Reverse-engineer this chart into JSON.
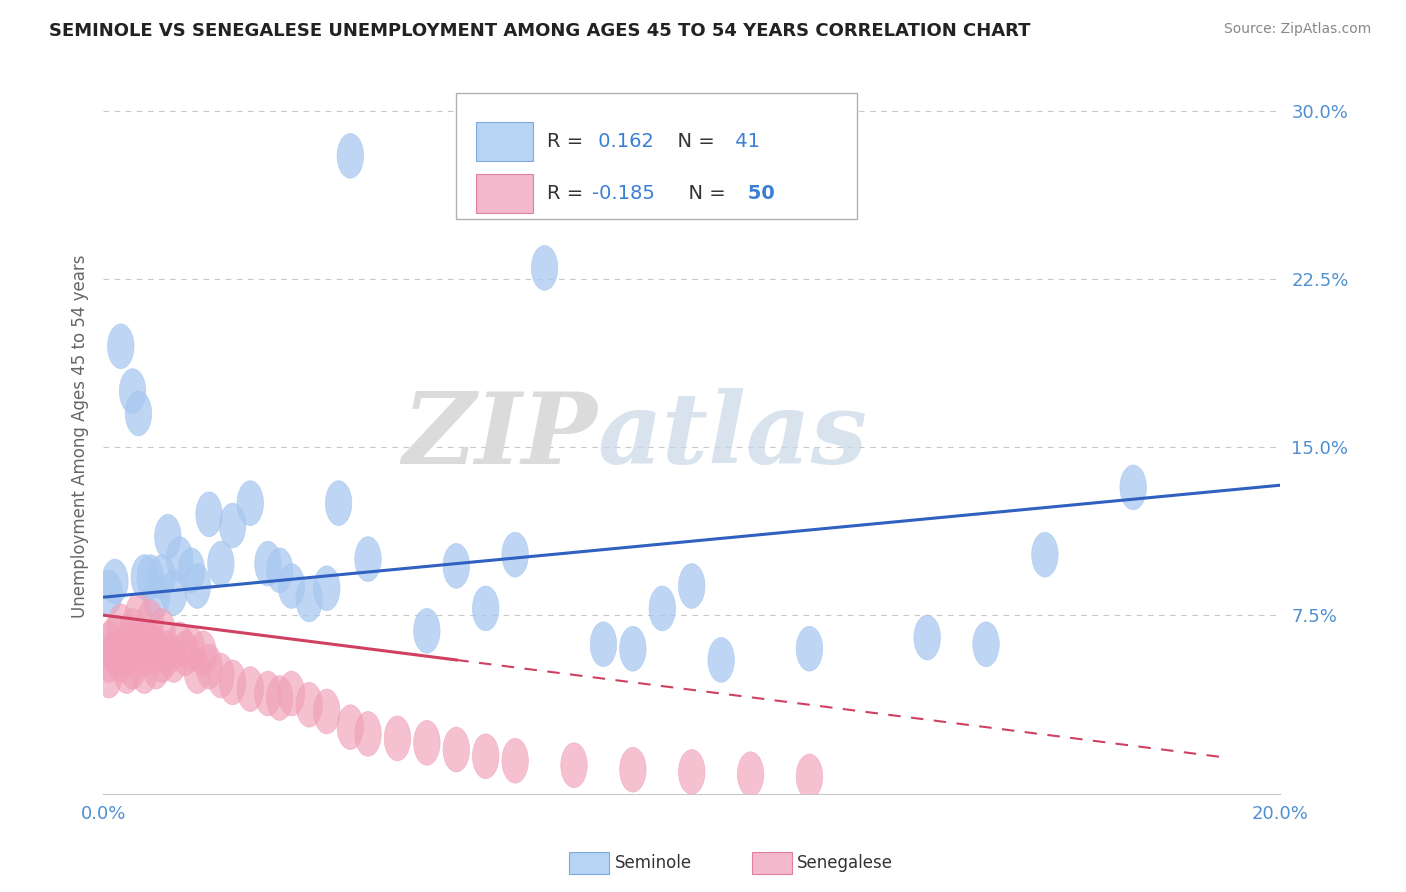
{
  "title": "SEMINOLE VS SENEGALESE UNEMPLOYMENT AMONG AGES 45 TO 54 YEARS CORRELATION CHART",
  "source": "Source: ZipAtlas.com",
  "xlim": [
    0.0,
    0.2
  ],
  "ylim": [
    -0.005,
    0.315
  ],
  "ylabel": "Unemployment Among Ages 45 to 54 years",
  "watermark_zip": "ZIP",
  "watermark_atlas": "atlas",
  "seminole_color": "#a8c8f0",
  "senegalese_color": "#f0a0b8",
  "seminole_line_color": "#3060c0",
  "senegalese_line_color": "#d04060",
  "background_color": "#ffffff",
  "grid_color": "#c8c8c8",
  "legend_box_blue": "#b8d4f4",
  "legend_box_pink": "#f4b8cc",
  "ytick_color": "#5090d0",
  "xtick_color": "#5090d0",
  "seminole_x": [
    0.001,
    0.002,
    0.003,
    0.005,
    0.006,
    0.007,
    0.008,
    0.009,
    0.01,
    0.011,
    0.012,
    0.013,
    0.015,
    0.016,
    0.018,
    0.02,
    0.022,
    0.025,
    0.028,
    0.03,
    0.032,
    0.035,
    0.038,
    0.04,
    0.042,
    0.045,
    0.055,
    0.06,
    0.065,
    0.07,
    0.075,
    0.085,
    0.09,
    0.095,
    0.1,
    0.105,
    0.12,
    0.14,
    0.15,
    0.16,
    0.175
  ],
  "seminole_y": [
    0.085,
    0.09,
    0.195,
    0.175,
    0.165,
    0.092,
    0.092,
    0.083,
    0.092,
    0.11,
    0.085,
    0.1,
    0.095,
    0.088,
    0.12,
    0.098,
    0.115,
    0.125,
    0.098,
    0.095,
    0.088,
    0.082,
    0.087,
    0.125,
    0.28,
    0.1,
    0.068,
    0.097,
    0.078,
    0.102,
    0.23,
    0.062,
    0.06,
    0.078,
    0.088,
    0.055,
    0.06,
    0.065,
    0.062,
    0.102,
    0.132
  ],
  "senegalese_x": [
    0.001,
    0.001,
    0.001,
    0.002,
    0.002,
    0.003,
    0.003,
    0.004,
    0.004,
    0.005,
    0.005,
    0.005,
    0.006,
    0.006,
    0.007,
    0.007,
    0.008,
    0.008,
    0.009,
    0.009,
    0.01,
    0.01,
    0.011,
    0.012,
    0.013,
    0.014,
    0.015,
    0.016,
    0.017,
    0.018,
    0.02,
    0.022,
    0.025,
    0.028,
    0.03,
    0.032,
    0.035,
    0.038,
    0.042,
    0.045,
    0.05,
    0.055,
    0.06,
    0.065,
    0.07,
    0.08,
    0.09,
    0.1,
    0.11,
    0.12
  ],
  "senegalese_y": [
    0.062,
    0.055,
    0.048,
    0.065,
    0.058,
    0.07,
    0.055,
    0.058,
    0.05,
    0.068,
    0.06,
    0.052,
    0.075,
    0.062,
    0.058,
    0.05,
    0.072,
    0.062,
    0.06,
    0.052,
    0.068,
    0.055,
    0.058,
    0.055,
    0.062,
    0.058,
    0.06,
    0.05,
    0.058,
    0.052,
    0.048,
    0.045,
    0.042,
    0.04,
    0.038,
    0.04,
    0.035,
    0.032,
    0.025,
    0.022,
    0.02,
    0.018,
    0.015,
    0.012,
    0.01,
    0.008,
    0.006,
    0.005,
    0.004,
    0.003
  ]
}
